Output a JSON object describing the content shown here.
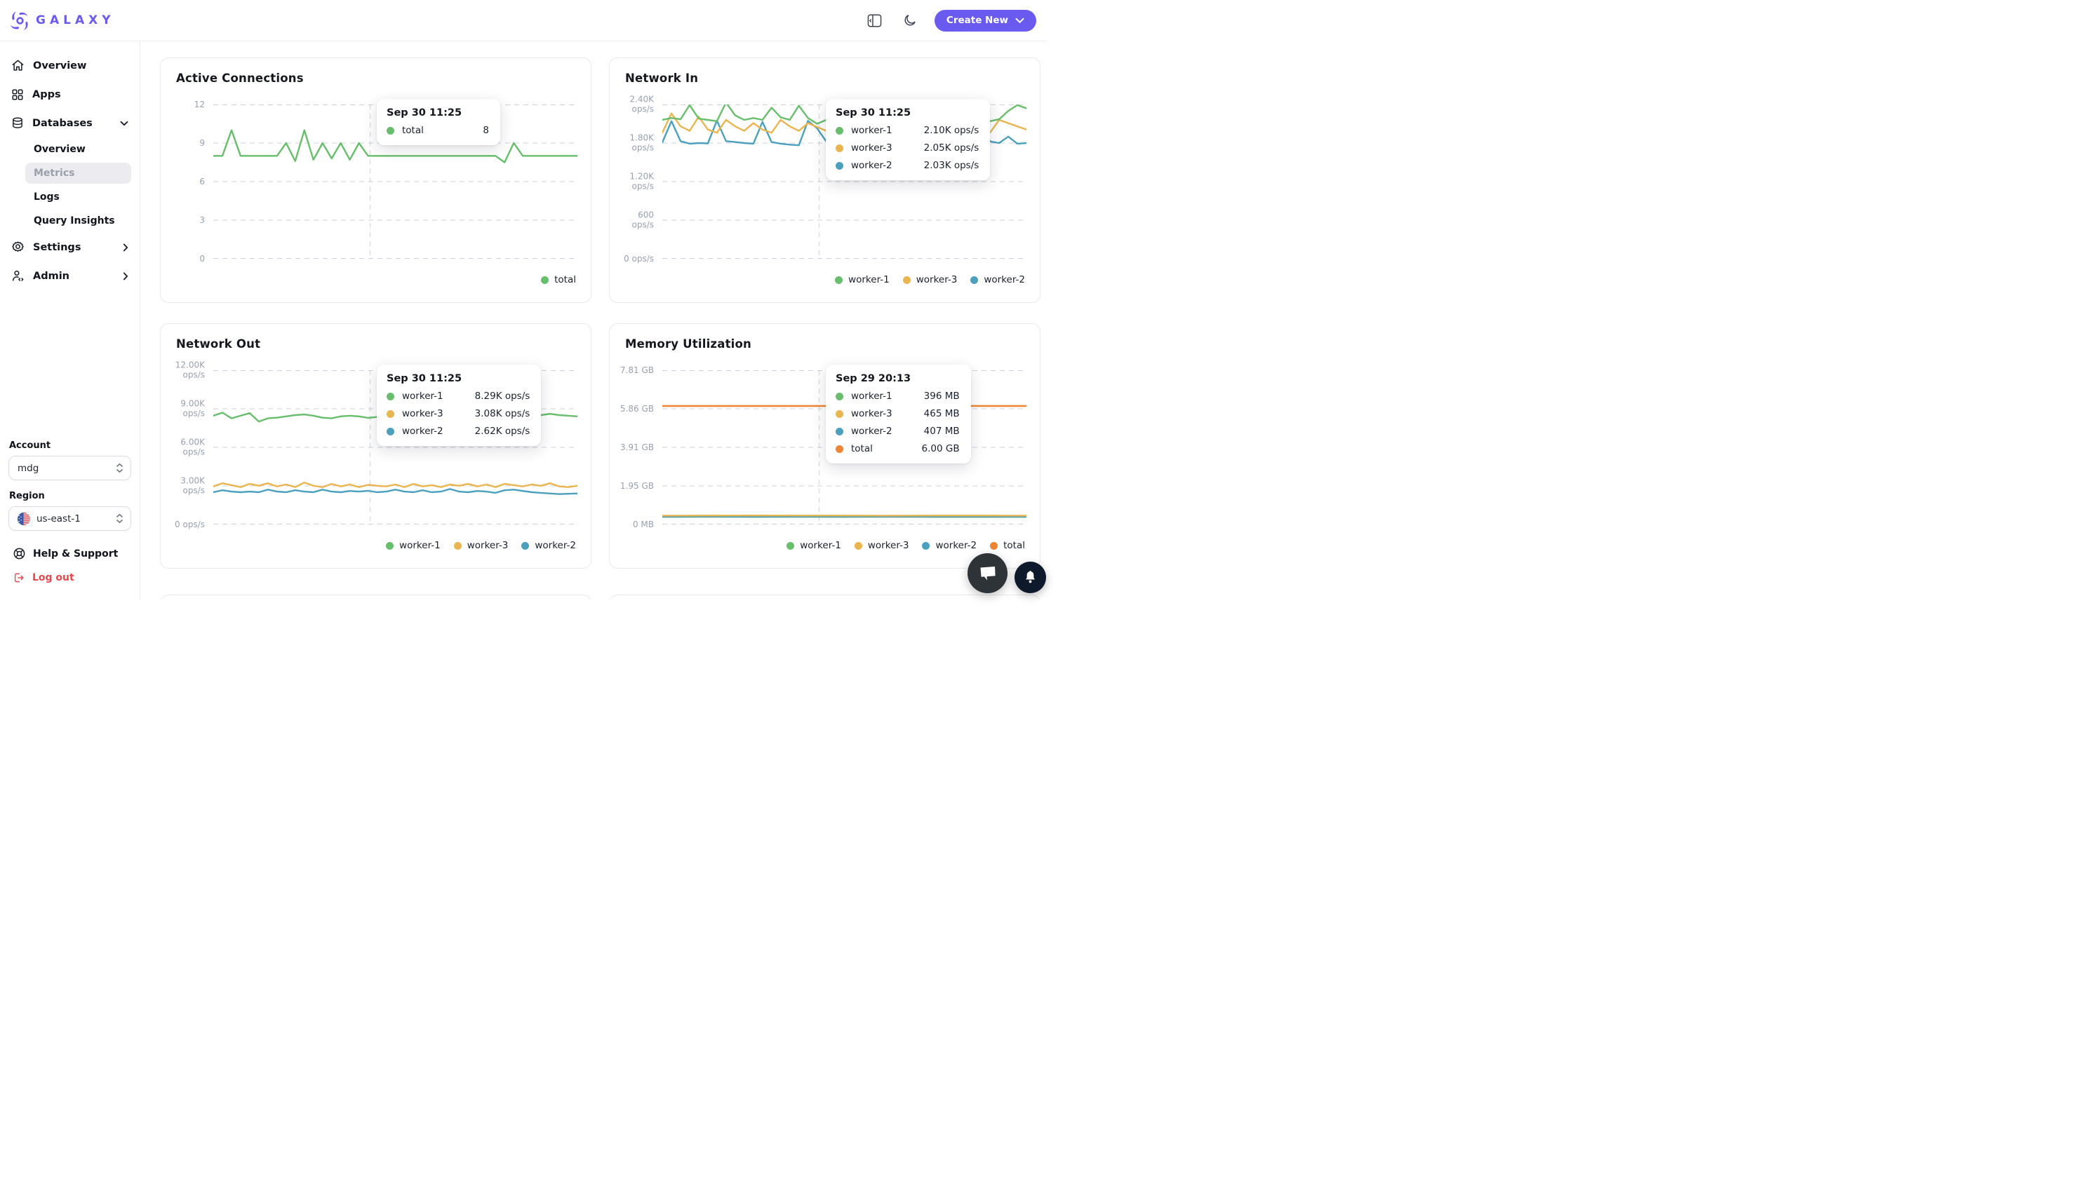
{
  "brand": {
    "name": "GALAXY"
  },
  "header": {
    "create_new": "Create New"
  },
  "colors": {
    "brand": "#6A5AEF",
    "green": "#67BE6B",
    "yellow": "#EAB54E",
    "blue": "#4BA0BD",
    "orange": "#EE8434",
    "danger": "#E5484D"
  },
  "sidebar": {
    "items": [
      {
        "label": "Overview"
      },
      {
        "label": "Apps"
      },
      {
        "label": "Databases"
      },
      {
        "label": "Settings"
      },
      {
        "label": "Admin"
      }
    ],
    "database_children": [
      {
        "label": "Overview"
      },
      {
        "label": "Metrics",
        "active": true
      },
      {
        "label": "Logs"
      },
      {
        "label": "Query Insights"
      }
    ],
    "account_label": "Account",
    "account_value": "mdg",
    "region_label": "Region",
    "region_value": "us-east-1",
    "help_label": "Help & Support",
    "logout_label": "Log out"
  },
  "chart_data": [
    {
      "type": "line",
      "title": "Active Connections",
      "ylim": [
        0,
        12
      ],
      "ymax": 12,
      "grid": true,
      "legend_position": "bottom-right",
      "yticks": [
        [
          "12"
        ],
        [
          "9"
        ],
        [
          "6"
        ],
        [
          "3"
        ],
        [
          "0"
        ]
      ],
      "crosshair_frac": 0.431,
      "series": [
        {
          "name": "total",
          "color": "#67BE6B",
          "values": [
            8,
            8,
            10,
            8,
            8,
            8,
            8,
            8,
            9,
            7.6,
            10,
            7.7,
            9,
            7.8,
            9,
            7.7,
            9,
            8,
            8,
            8,
            8,
            8,
            8,
            8,
            8,
            8,
            8,
            8,
            8,
            8,
            8,
            8,
            7.5,
            9,
            8,
            8,
            8,
            8,
            8,
            8,
            8
          ]
        }
      ],
      "legend": [
        {
          "label": "total",
          "color": "#67BE6B"
        }
      ],
      "tooltip": {
        "title": "Sep 30 11:25",
        "rows": [
          {
            "label": "total",
            "color": "#67BE6B",
            "value": "8"
          }
        ]
      }
    },
    {
      "type": "line",
      "title": "Network In",
      "unit": "ops/s",
      "ylim": [
        0,
        2400
      ],
      "ymax": 2400,
      "grid": true,
      "legend_position": "bottom-right",
      "yticks": [
        [
          "2.40K",
          "ops/s"
        ],
        [
          "1.80K",
          "ops/s"
        ],
        [
          "1.20K",
          "ops/s"
        ],
        [
          "600",
          "ops/s"
        ],
        [
          "0 ops/s"
        ]
      ],
      "crosshair_frac": 0.431,
      "series": [
        {
          "name": "worker-2",
          "color": "#4BA0BD",
          "values": [
            1810,
            2140,
            1830,
            1790,
            1800,
            1795,
            2150,
            1830,
            1815,
            1800,
            1790,
            2130,
            1815,
            1790,
            1775,
            1765,
            2145,
            2030,
            1825,
            1810,
            1790,
            1780,
            2150,
            1825,
            1810,
            1800,
            1790,
            2160,
            1825,
            1810,
            1780,
            2130,
            1790,
            1780,
            1765,
            2150,
            1825,
            1800,
            1900,
            1790,
            1800
          ]
        },
        {
          "name": "worker-3",
          "color": "#EAB54E",
          "values": [
            1960,
            2260,
            2060,
            1990,
            2210,
            2010,
            1960,
            2160,
            2060,
            1990,
            2110,
            2010,
            1960,
            2160,
            2060,
            1990,
            2110,
            2050,
            1990,
            2160,
            2010,
            1960,
            2110,
            2010,
            1960,
            2160,
            2060,
            1990,
            2110,
            2010,
            1960,
            2160,
            2060,
            1990,
            2110,
            2010,
            1960,
            2160,
            2110,
            2060,
            2010
          ]
        },
        {
          "name": "worker-1",
          "color": "#67BE6B",
          "values": [
            2160,
            2190,
            2170,
            2390,
            2180,
            2160,
            2140,
            2430,
            2230,
            2160,
            2190,
            2160,
            2350,
            2200,
            2160,
            2380,
            2190,
            2100,
            2160,
            2350,
            2180,
            2140,
            2190,
            2300,
            2160,
            2210,
            2140,
            2350,
            2190,
            2230,
            2160,
            2310,
            2140,
            2390,
            2210,
            2160,
            2140,
            2170,
            2300,
            2390,
            2340
          ]
        }
      ],
      "legend": [
        {
          "label": "worker-1",
          "color": "#67BE6B"
        },
        {
          "label": "worker-3",
          "color": "#EAB54E"
        },
        {
          "label": "worker-2",
          "color": "#4BA0BD"
        }
      ],
      "tooltip": {
        "title": "Sep 30 11:25",
        "rows": [
          {
            "label": "worker-1",
            "color": "#67BE6B",
            "value": "2.10K ops/s"
          },
          {
            "label": "worker-3",
            "color": "#EAB54E",
            "value": "2.05K ops/s"
          },
          {
            "label": "worker-2",
            "color": "#4BA0BD",
            "value": "2.03K ops/s"
          }
        ]
      }
    },
    {
      "type": "line",
      "title": "Network Out",
      "unit": "ops/s",
      "ylim": [
        0,
        12000
      ],
      "ymax": 12000,
      "grid": true,
      "legend_position": "bottom-right",
      "yticks": [
        [
          "12.00K",
          "ops/s"
        ],
        [
          "9.00K",
          "ops/s"
        ],
        [
          "6.00K",
          "ops/s"
        ],
        [
          "3.00K",
          "ops/s"
        ],
        [
          "0 ops/s"
        ]
      ],
      "crosshair_frac": 0.431,
      "series": [
        {
          "name": "worker-2",
          "color": "#4BA0BD",
          "values": [
            2510,
            2660,
            2560,
            2510,
            2560,
            2510,
            2710,
            2560,
            2510,
            2660,
            2560,
            2510,
            2710,
            2560,
            2510,
            2610,
            2560,
            2620,
            2510,
            2560,
            2710,
            2560,
            2510,
            2660,
            2510,
            2560,
            2760,
            2560,
            2510,
            2610,
            2560,
            2460,
            2660,
            2710,
            2610,
            2510,
            2460,
            2410,
            2360,
            2390,
            2410
          ]
        },
        {
          "name": "worker-3",
          "color": "#EAB54E",
          "values": [
            2960,
            3210,
            3060,
            2910,
            3160,
            3010,
            3210,
            2960,
            3110,
            2910,
            3260,
            3010,
            2910,
            3160,
            2960,
            3110,
            2910,
            3080,
            3010,
            2960,
            3110,
            2910,
            3160,
            2960,
            3060,
            2910,
            3110,
            3010,
            3160,
            2960,
            3110,
            2910,
            3160,
            3060,
            2960,
            3110,
            3010,
            3210,
            2960,
            2910,
            3010
          ]
        },
        {
          "name": "worker-1",
          "color": "#67BE6B",
          "values": [
            8460,
            8700,
            8260,
            8460,
            8660,
            8010,
            8260,
            8310,
            8410,
            8510,
            8560,
            8460,
            8310,
            8260,
            8410,
            8460,
            8410,
            8290,
            8360,
            8410,
            8310,
            8460,
            8510,
            8360,
            8610,
            8560,
            8510,
            8460,
            8510,
            8410,
            8310,
            8460,
            8560,
            8460,
            8410,
            8310,
            8510,
            8610,
            8510,
            8460,
            8410
          ]
        }
      ],
      "legend": [
        {
          "label": "worker-1",
          "color": "#67BE6B"
        },
        {
          "label": "worker-3",
          "color": "#EAB54E"
        },
        {
          "label": "worker-2",
          "color": "#4BA0BD"
        }
      ],
      "tooltip": {
        "title": "Sep 30 11:25",
        "rows": [
          {
            "label": "worker-1",
            "color": "#67BE6B",
            "value": "8.29K ops/s"
          },
          {
            "label": "worker-3",
            "color": "#EAB54E",
            "value": "3.08K ops/s"
          },
          {
            "label": "worker-2",
            "color": "#4BA0BD",
            "value": "2.62K ops/s"
          }
        ]
      }
    },
    {
      "type": "line",
      "title": "Memory Utilization",
      "unit": "MB",
      "ylim": [
        0,
        8000
      ],
      "ymax": 8000,
      "grid": true,
      "legend_position": "bottom-right",
      "yticks": [
        [
          "7.81 GB"
        ],
        [
          "5.86 GB"
        ],
        [
          "3.91 GB"
        ],
        [
          "1.95 GB"
        ],
        [
          "0 MB"
        ]
      ],
      "crosshair_frac": 0.431,
      "series": [
        {
          "name": "worker-1",
          "color": "#67BE6B",
          "values": [
            394,
            396,
            392,
            395,
            393,
            396,
            394,
            392,
            394
          ]
        },
        {
          "name": "worker-2",
          "color": "#4BA0BD",
          "values": [
            404,
            406,
            402,
            405,
            403,
            406,
            404,
            402,
            404
          ]
        },
        {
          "name": "worker-3",
          "color": "#EAB54E",
          "values": [
            458,
            462,
            466,
            460,
            463,
            458,
            462,
            460,
            458
          ]
        },
        {
          "name": "total",
          "color": "#EE8434",
          "values": [
            6144,
            6144
          ]
        }
      ],
      "legend": [
        {
          "label": "worker-1",
          "color": "#67BE6B"
        },
        {
          "label": "worker-3",
          "color": "#EAB54E"
        },
        {
          "label": "worker-2",
          "color": "#4BA0BD"
        },
        {
          "label": "total",
          "color": "#EE8434"
        }
      ],
      "tooltip": {
        "title": "Sep 29 20:13",
        "rows": [
          {
            "label": "worker-1",
            "color": "#67BE6B",
            "value": "396 MB"
          },
          {
            "label": "worker-3",
            "color": "#EAB54E",
            "value": "465 MB"
          },
          {
            "label": "worker-2",
            "color": "#4BA0BD",
            "value": "407 MB"
          },
          {
            "label": "total",
            "color": "#EE8434",
            "value": "6.00 GB"
          }
        ]
      }
    }
  ]
}
